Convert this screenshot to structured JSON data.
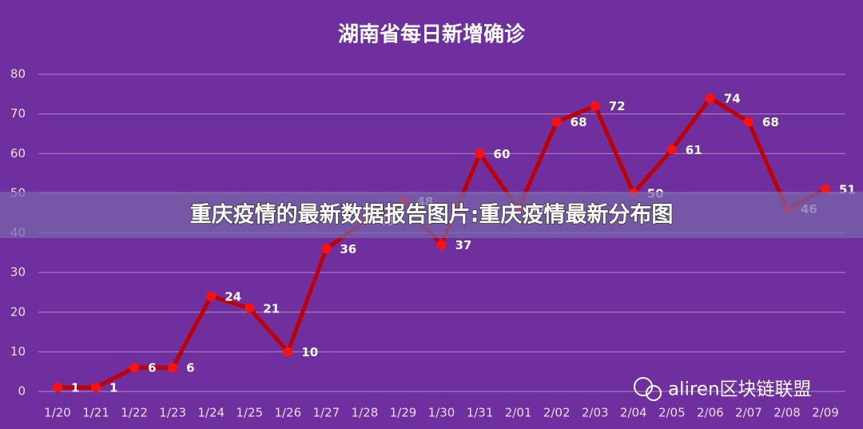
{
  "chart_data": {
    "type": "line",
    "title": "湖南省每日新增确诊",
    "categories": [
      "1/20",
      "1/21",
      "1/22",
      "1/23",
      "1/24",
      "1/25",
      "1/26",
      "1/27",
      "1/28",
      "1/29",
      "1/30",
      "1/31",
      "2/01",
      "2/02",
      "2/03",
      "2/04",
      "2/05",
      "2/06",
      "2/07",
      "2/08",
      "2/09"
    ],
    "values": [
      1,
      1,
      6,
      6,
      24,
      21,
      10,
      36,
      43,
      48,
      37,
      60,
      46,
      68,
      72,
      50,
      61,
      74,
      68,
      46,
      51
    ],
    "color": "#c00000",
    "marker_color": "#ff1010",
    "ylim": [
      0,
      80
    ],
    "yticks": [
      0,
      10,
      20,
      30,
      40,
      50,
      60,
      70,
      80
    ],
    "grid": true
  },
  "overlay": {
    "banner": "重庆疫情的最新数据报告图片:重庆疫情最新分布图",
    "watermark": "aliren区块链联盟"
  }
}
